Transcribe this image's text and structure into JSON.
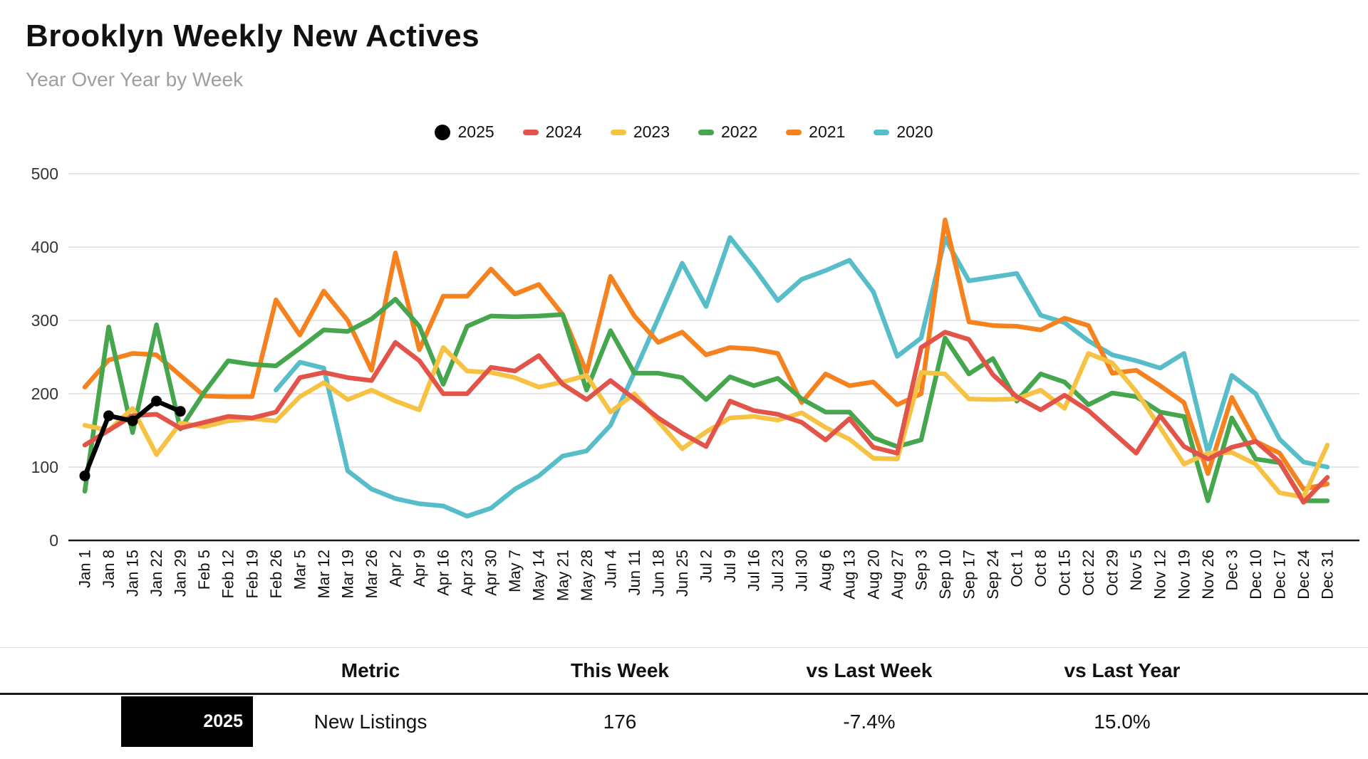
{
  "title": "Brooklyn Weekly New Actives",
  "subtitle": "Year Over Year by Week",
  "colors": {
    "y2025": "#000000",
    "y2024": "#E25449",
    "y2023": "#F6C243",
    "y2022": "#45A64D",
    "y2021": "#F5821F",
    "y2020": "#57BEC9",
    "grid": "#d8d8d8",
    "axis": "#1a1a1a"
  },
  "chart_data": {
    "type": "line",
    "title": "Brooklyn Weekly New Actives",
    "subtitle": "Year Over Year by Week",
    "ylim": [
      0,
      500
    ],
    "yticks": [
      0,
      100,
      200,
      300,
      400,
      500
    ],
    "grid": true,
    "legend_position": "top",
    "categories": [
      "Jan 1",
      "Jan 8",
      "Jan 15",
      "Jan 22",
      "Jan 29",
      "Feb 5",
      "Feb 12",
      "Feb 19",
      "Feb 26",
      "Mar 5",
      "Mar 12",
      "Mar 19",
      "Mar 26",
      "Apr 2",
      "Apr 9",
      "Apr 16",
      "Apr 23",
      "Apr 30",
      "May 7",
      "May 14",
      "May 21",
      "May 28",
      "Jun 4",
      "Jun 11",
      "Jun 18",
      "Jun 25",
      "Jul 2",
      "Jul 9",
      "Jul 16",
      "Jul 23",
      "Jul 30",
      "Aug 6",
      "Aug 13",
      "Aug 20",
      "Aug 27",
      "Sep 3",
      "Sep 10",
      "Sep 17",
      "Sep 24",
      "Oct 1",
      "Oct 8",
      "Oct 15",
      "Oct 22",
      "Oct 29",
      "Nov 5",
      "Nov 12",
      "Nov 19",
      "Nov 26",
      "Dec 3",
      "Dec 10",
      "Dec 17",
      "Dec 24",
      "Dec 31"
    ],
    "series": [
      {
        "name": "2020",
        "color": "#57BEC9",
        "marker": "dash",
        "values": [
          null,
          null,
          null,
          null,
          null,
          null,
          null,
          null,
          205,
          243,
          235,
          95,
          70,
          57,
          50,
          47,
          33,
          44,
          70,
          88,
          115,
          122,
          157,
          229,
          303,
          378,
          319,
          413,
          372,
          327,
          356,
          368,
          382,
          339,
          251,
          276,
          412,
          354,
          359,
          364,
          307,
          297,
          272,
          253,
          245,
          235,
          255,
          120,
          225,
          200,
          138,
          107,
          100
        ]
      },
      {
        "name": "2021",
        "color": "#F5821F",
        "marker": "dash",
        "values": [
          209,
          246,
          255,
          253,
          225,
          197,
          196,
          196,
          328,
          280,
          340,
          300,
          232,
          392,
          260,
          333,
          333,
          370,
          336,
          349,
          308,
          229,
          360,
          306,
          270,
          284,
          253,
          263,
          261,
          255,
          188,
          227,
          211,
          216,
          185,
          200,
          437,
          298,
          293,
          292,
          287,
          303,
          293,
          228,
          232,
          211,
          188,
          91,
          195,
          135,
          119,
          70,
          77
        ]
      },
      {
        "name": "2022",
        "color": "#45A64D",
        "marker": "dash",
        "values": [
          67,
          291,
          147,
          294,
          152,
          202,
          245,
          240,
          238,
          262,
          287,
          285,
          302,
          329,
          292,
          213,
          292,
          306,
          305,
          306,
          308,
          205,
          286,
          228,
          228,
          222,
          192,
          223,
          211,
          221,
          193,
          175,
          175,
          140,
          128,
          137,
          276,
          227,
          248,
          190,
          227,
          216,
          185,
          201,
          196,
          175,
          169,
          54,
          167,
          111,
          106,
          54,
          54
        ]
      },
      {
        "name": "2023",
        "color": "#F6C243",
        "marker": "dash",
        "values": [
          157,
          150,
          180,
          117,
          160,
          155,
          163,
          166,
          163,
          196,
          215,
          192,
          205,
          190,
          178,
          263,
          231,
          229,
          222,
          209,
          216,
          225,
          175,
          200,
          162,
          125,
          148,
          167,
          169,
          164,
          174,
          154,
          138,
          112,
          111,
          229,
          227,
          193,
          192,
          193,
          205,
          180,
          255,
          242,
          203,
          154,
          104,
          119,
          120,
          104,
          65,
          59,
          130
        ]
      },
      {
        "name": "2024",
        "color": "#E25449",
        "marker": "dash",
        "values": [
          130,
          150,
          170,
          172,
          153,
          161,
          169,
          167,
          175,
          222,
          229,
          222,
          218,
          270,
          245,
          200,
          200,
          236,
          231,
          252,
          213,
          192,
          218,
          193,
          167,
          146,
          128,
          190,
          177,
          172,
          161,
          137,
          166,
          127,
          119,
          263,
          284,
          274,
          226,
          196,
          178,
          198,
          177,
          148,
          119,
          170,
          128,
          111,
          127,
          135,
          107,
          52,
          86
        ]
      },
      {
        "name": "2025",
        "color": "#000000",
        "marker": "dot",
        "points": true,
        "values": [
          88,
          170,
          163,
          190,
          176,
          null,
          null,
          null,
          null,
          null,
          null,
          null,
          null,
          null,
          null,
          null,
          null,
          null,
          null,
          null,
          null,
          null,
          null,
          null,
          null,
          null,
          null,
          null,
          null,
          null,
          null,
          null,
          null,
          null,
          null,
          null,
          null,
          null,
          null,
          null,
          null,
          null,
          null,
          null,
          null,
          null,
          null,
          null,
          null,
          null,
          null,
          null,
          null
        ]
      }
    ]
  },
  "legend": [
    {
      "label": "2025",
      "color": "#000000",
      "marker": "dot"
    },
    {
      "label": "2024",
      "color": "#E25449",
      "marker": "dash"
    },
    {
      "label": "2023",
      "color": "#F6C243",
      "marker": "dash"
    },
    {
      "label": "2022",
      "color": "#45A64D",
      "marker": "dash"
    },
    {
      "label": "2021",
      "color": "#F5821F",
      "marker": "dash"
    },
    {
      "label": "2020",
      "color": "#57BEC9",
      "marker": "dash"
    }
  ],
  "table": {
    "headers": {
      "metric": "Metric",
      "this_week": "This Week",
      "vs_last_week": "vs Last Week",
      "vs_last_year": "vs Last Year"
    },
    "row": {
      "year_badge": "2025",
      "metric": "New Listings",
      "this_week": "176",
      "vs_last_week": "-7.4%",
      "vs_last_year": "15.0%"
    }
  }
}
